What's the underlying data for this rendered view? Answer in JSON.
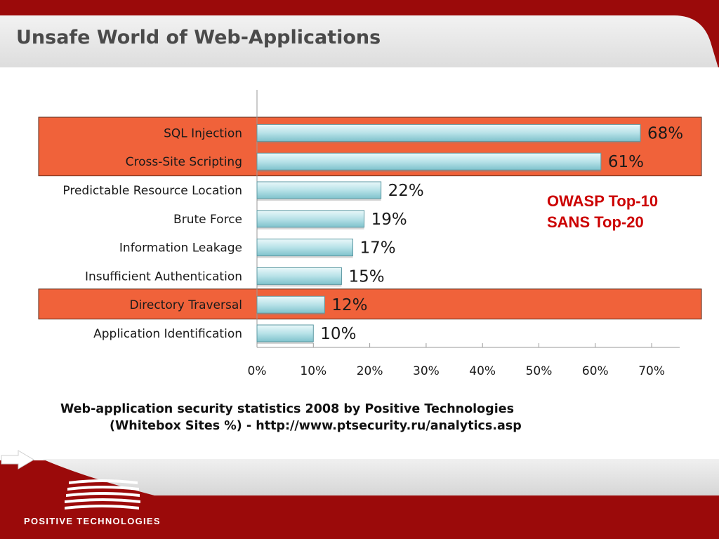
{
  "slide": {
    "title": "Unsafe World of Web-Applications"
  },
  "annotation": {
    "lines": [
      "OWASP Top-10",
      "SANS Top-20"
    ],
    "color": "#cc0000"
  },
  "caption": {
    "line1": "Web-application security statistics 2008 by Positive Technologies",
    "line2": "(Whitebox Sites %) - http://www.ptsecurity.ru/analytics.asp"
  },
  "footer": {
    "brand": "POSITIVE TECHNOLOGIES",
    "next_icon": "right-arrow-icon"
  },
  "colors": {
    "header_red": "#9b0a0a",
    "highlight": "#f0623a",
    "bar_top": "#e6f6f8",
    "bar_bottom": "#7fc2cc",
    "title_gray": "#4a4a4a"
  },
  "chart_data": {
    "type": "bar",
    "orientation": "horizontal",
    "categories": [
      "SQL Injection",
      "Cross-Site Scripting",
      "Predictable Resource Location",
      "Brute Force",
      "Information Leakage",
      "Insufficient Authentication",
      "Directory Traversal",
      "Application Identification"
    ],
    "values": [
      68,
      61,
      22,
      19,
      17,
      15,
      12,
      10
    ],
    "value_labels": [
      "68%",
      "61%",
      "22%",
      "19%",
      "17%",
      "15%",
      "12%",
      "10%"
    ],
    "highlighted_categories": [
      "SQL Injection",
      "Cross-Site Scripting",
      "Directory Traversal"
    ],
    "xlim": [
      0,
      75
    ],
    "xticks": [
      0,
      10,
      20,
      30,
      40,
      50,
      60,
      70
    ],
    "xtick_labels": [
      "0%",
      "10%",
      "20%",
      "30%",
      "40%",
      "50%",
      "60%",
      "70%"
    ],
    "grid": false,
    "legend": "none"
  }
}
